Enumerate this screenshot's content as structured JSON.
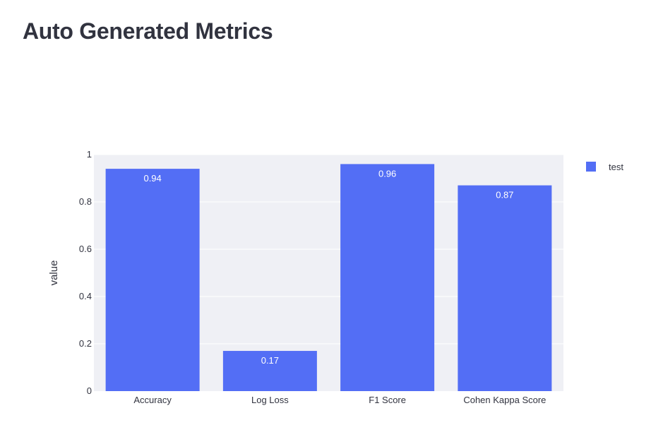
{
  "page": {
    "title": "Auto Generated Metrics"
  },
  "colors": {
    "bar": "#536ef5",
    "plot_bg": "#eff0f5",
    "grid": "#ffffff",
    "text": "#31333f",
    "bar_label": "#ffffff"
  },
  "chart_data": {
    "type": "bar",
    "categories": [
      "Accuracy",
      "Log Loss",
      "F1 Score",
      "Cohen Kappa Score"
    ],
    "series": [
      {
        "name": "test",
        "values": [
          0.94,
          0.17,
          0.96,
          0.87
        ],
        "labels": [
          "0.94",
          "0.17",
          "0.96",
          "0.87"
        ]
      }
    ],
    "xlabel": "",
    "ylabel": "value",
    "ylim": [
      0,
      1
    ],
    "yticks": [
      0,
      0.2,
      0.4,
      0.6,
      0.8,
      1
    ],
    "ytick_labels": [
      "0",
      "0.2",
      "0.4",
      "0.6",
      "0.8",
      "1"
    ],
    "grid": true,
    "legend_position": "top-right"
  }
}
